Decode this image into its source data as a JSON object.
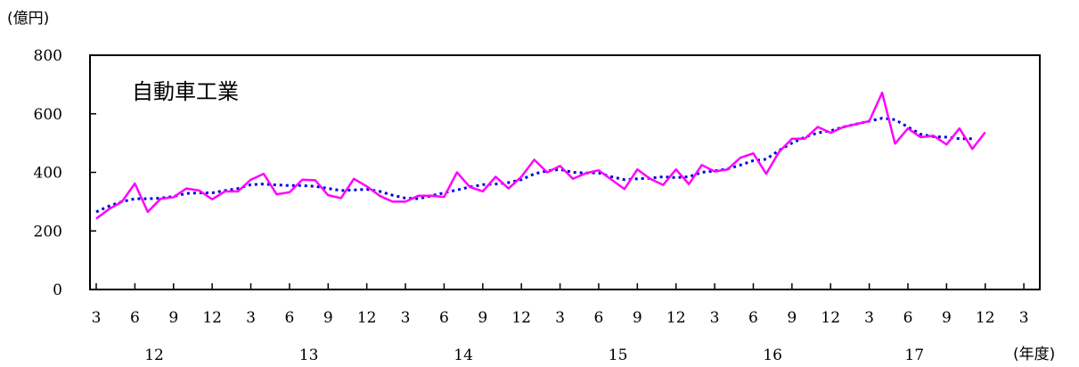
{
  "chart_data": {
    "type": "line",
    "title": "自動車工業",
    "ylabel": "(億円)",
    "xlabel": "(年度)",
    "ylim": [
      0,
      800
    ],
    "yticks": [
      0,
      200,
      400,
      600,
      800
    ],
    "grid": false,
    "month_ticks": [
      "3",
      "6",
      "9",
      "12",
      "3",
      "6",
      "9",
      "12",
      "3",
      "6",
      "9",
      "12",
      "3",
      "6",
      "9",
      "12",
      "3",
      "6",
      "9",
      "12",
      "3",
      "6",
      "9",
      "12",
      "3"
    ],
    "year_labels": [
      {
        "label": "12",
        "month_index": 4.5
      },
      {
        "label": "13",
        "month_index": 16.5
      },
      {
        "label": "14",
        "month_index": 28.5
      },
      {
        "label": "15",
        "month_index": 40.5
      },
      {
        "label": "16",
        "month_index": 52.5
      },
      {
        "label": "17",
        "month_index": 63.5
      }
    ],
    "series": [
      {
        "color": "#ff00ff",
        "style": "solid",
        "values": [
          242,
          275,
          300,
          362,
          265,
          310,
          315,
          345,
          338,
          308,
          335,
          335,
          375,
          395,
          325,
          332,
          375,
          373,
          322,
          312,
          378,
          352,
          320,
          300,
          300,
          320,
          320,
          316,
          400,
          350,
          335,
          385,
          345,
          385,
          443,
          400,
          422,
          378,
          397,
          407,
          375,
          343,
          410,
          378,
          357,
          410,
          360,
          425,
          403,
          410,
          450,
          465,
          395,
          470,
          515,
          515,
          555,
          535,
          555,
          565,
          575,
          672,
          498,
          550,
          520,
          525,
          495,
          550,
          480,
          537
        ]
      },
      {
        "color": "#0000dd",
        "style": "dotted",
        "values": [
          265,
          285,
          300,
          310,
          310,
          312,
          318,
          328,
          330,
          330,
          338,
          345,
          358,
          360,
          357,
          355,
          355,
          352,
          345,
          338,
          340,
          342,
          335,
          322,
          312,
          310,
          320,
          330,
          340,
          350,
          358,
          360,
          365,
          375,
          395,
          405,
          410,
          400,
          398,
          398,
          385,
          375,
          378,
          380,
          385,
          382,
          385,
          400,
          405,
          412,
          425,
          440,
          445,
          475,
          500,
          520,
          535,
          542,
          555,
          565,
          575,
          585,
          580,
          555,
          530,
          522,
          520,
          515,
          515
        ]
      }
    ]
  }
}
